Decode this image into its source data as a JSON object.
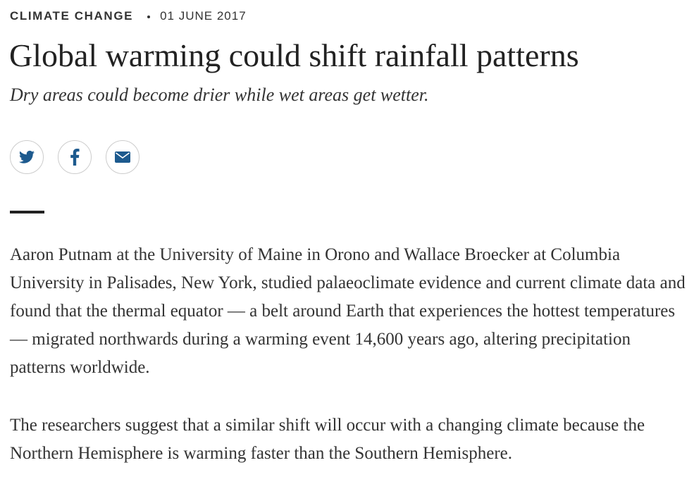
{
  "header": {
    "category": "CLIMATE CHANGE",
    "date": "01 JUNE 2017"
  },
  "article": {
    "title": "Global warming could shift rainfall patterns",
    "subtitle": "Dry areas could become drier while wet areas get wetter.",
    "paragraphs": [
      "Aaron Putnam at the University of Maine in Orono and Wallace Broecker at Columbia University in Palisades, New York, studied palaeoclimate evidence and current climate data and found that the thermal equator — a belt around Earth that experiences the hottest temperatures — migrated northwards during a warming event 14,600 years ago, altering precipitation patterns worldwide.",
      "The researchers suggest that a similar shift will occur with a changing climate because the Northern Hemisphere is warming faster than the Southern Hemisphere."
    ]
  }
}
